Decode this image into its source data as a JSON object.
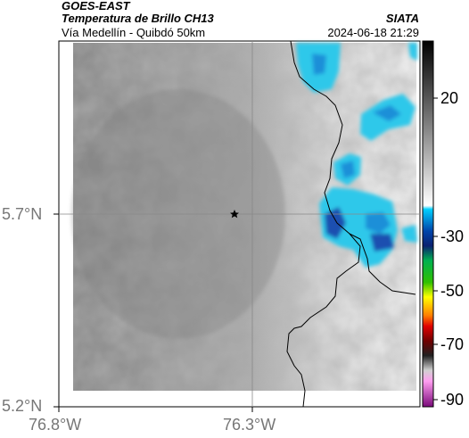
{
  "header": {
    "satellite": "GOES-EAST",
    "product": "Temperatura de Brillo CH13",
    "route": "Vía Medellín - Quibdó 50km",
    "source": "SIATA",
    "timestamp": "2024-06-18 21:29"
  },
  "map": {
    "lat_labels": [
      "5.7°N",
      "5.2°N"
    ],
    "lon_labels": [
      "76.8°W",
      "76.3°W"
    ],
    "marker": "star-marker",
    "grid": true
  },
  "colorbar": {
    "tick_labels": [
      "20",
      "-30",
      "-50",
      "-70",
      "-90"
    ],
    "colors": [
      "#000000",
      "#7a7a7a",
      "#ffffff",
      "#00c8ff",
      "#0a2a8a",
      "#00a000",
      "#ffff00",
      "#ff6000",
      "#b00000",
      "#ff9ef0",
      "#7a0a7a"
    ]
  }
}
